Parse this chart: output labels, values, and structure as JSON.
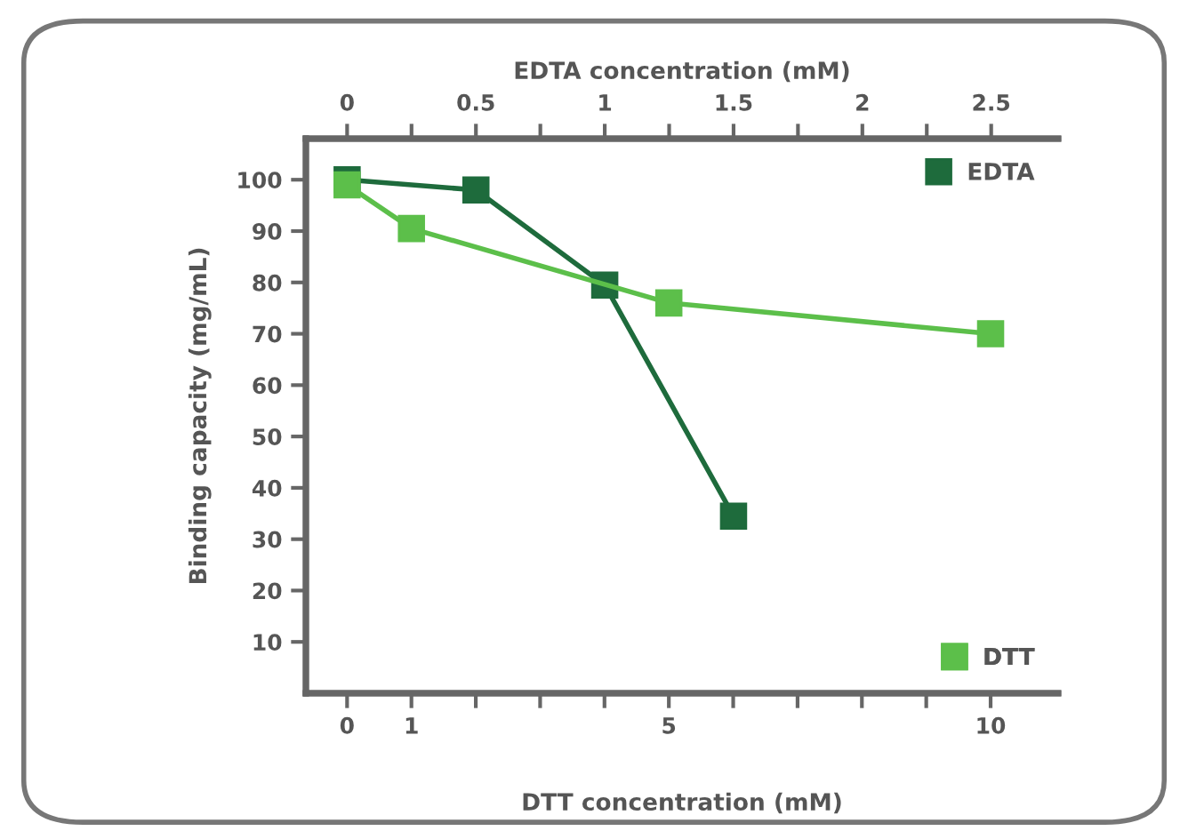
{
  "chart_data": {
    "type": "line",
    "xlabel": "DTT concentration (mM)",
    "x2label": "EDTA concentration (mM)",
    "ylabel": "Binding capacity (mg/mL)",
    "xlim": [
      -0.64,
      11.05
    ],
    "xticks": [
      0,
      1,
      {
        "value": 2,
        "label": null
      },
      {
        "value": 3,
        "label": null
      },
      {
        "value": 4,
        "label": null
      },
      5,
      {
        "value": 6,
        "label": null
      },
      {
        "value": 7,
        "label": null
      },
      {
        "value": 8,
        "label": null
      },
      {
        "value": 9,
        "label": null
      },
      10
    ],
    "x2lim": [
      -0.16,
      2.76
    ],
    "x2ticks": [
      0,
      {
        "value": 0.25,
        "label": null
      },
      0.5,
      {
        "value": 0.75,
        "label": null
      },
      1,
      {
        "value": 1.25,
        "label": null
      },
      1.5,
      {
        "value": 1.75,
        "label": null
      },
      2,
      {
        "value": 2.25,
        "label": null
      },
      2.5
    ],
    "ylim": [
      0,
      108
    ],
    "yticks": [
      10,
      20,
      30,
      40,
      50,
      60,
      70,
      80,
      90,
      100
    ],
    "grid": false,
    "legend": "right",
    "marker": "square",
    "line_style": "solid",
    "series": [
      {
        "name": "EDTA",
        "color": "#1e6b3c",
        "axis": "x2",
        "x": [
          0,
          0.5,
          1,
          1.5
        ],
        "values": [
          100,
          98,
          79.5,
          34.5
        ]
      },
      {
        "name": "DTT",
        "color": "#5cbf4a",
        "x": [
          0,
          1,
          5,
          10
        ],
        "values": [
          99,
          90.5,
          76,
          70
        ]
      }
    ]
  }
}
